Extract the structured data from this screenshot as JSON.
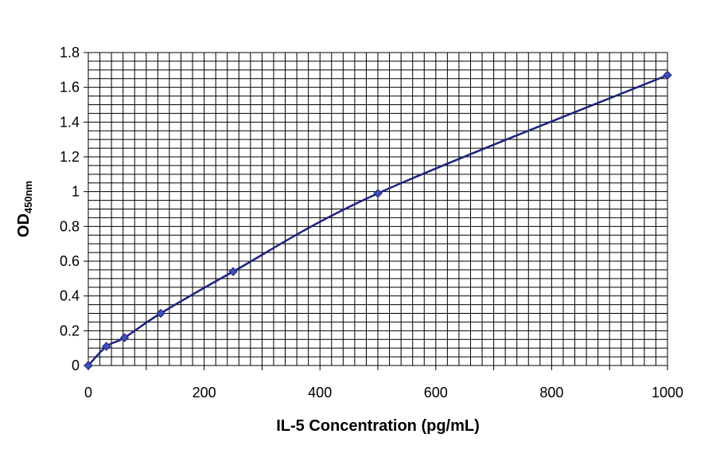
{
  "chart_data": {
    "type": "scatter",
    "title": "",
    "xlabel": "IL-5 Concentration (pg/mL)",
    "ylabel": {
      "main": "OD",
      "subscript": "450nm"
    },
    "xlim": [
      0,
      1000
    ],
    "ylim": [
      0,
      1.8
    ],
    "x_ticks": [
      0,
      200,
      400,
      600,
      800,
      1000
    ],
    "x_tick_labels": [
      "0",
      "200",
      "400",
      "600",
      "800",
      "1000"
    ],
    "y_ticks": [
      0,
      0.2,
      0.4,
      0.6,
      0.8,
      1,
      1.2,
      1.4,
      1.6,
      1.8
    ],
    "y_tick_labels": [
      "0",
      "0.2",
      "0.4",
      "0.6",
      "0.8",
      "1",
      "1.2",
      "1.4",
      "1.6",
      "1.8"
    ],
    "grid": true,
    "legend": "none",
    "series": [
      {
        "x": [
          0,
          31.25,
          62.5,
          125,
          250,
          500,
          1000
        ],
        "y": [
          0.0,
          0.11,
          0.16,
          0.3,
          0.54,
          0.99,
          1.67
        ],
        "line": "smooth",
        "marker": "diamond",
        "color": "#1a237e"
      }
    ]
  }
}
